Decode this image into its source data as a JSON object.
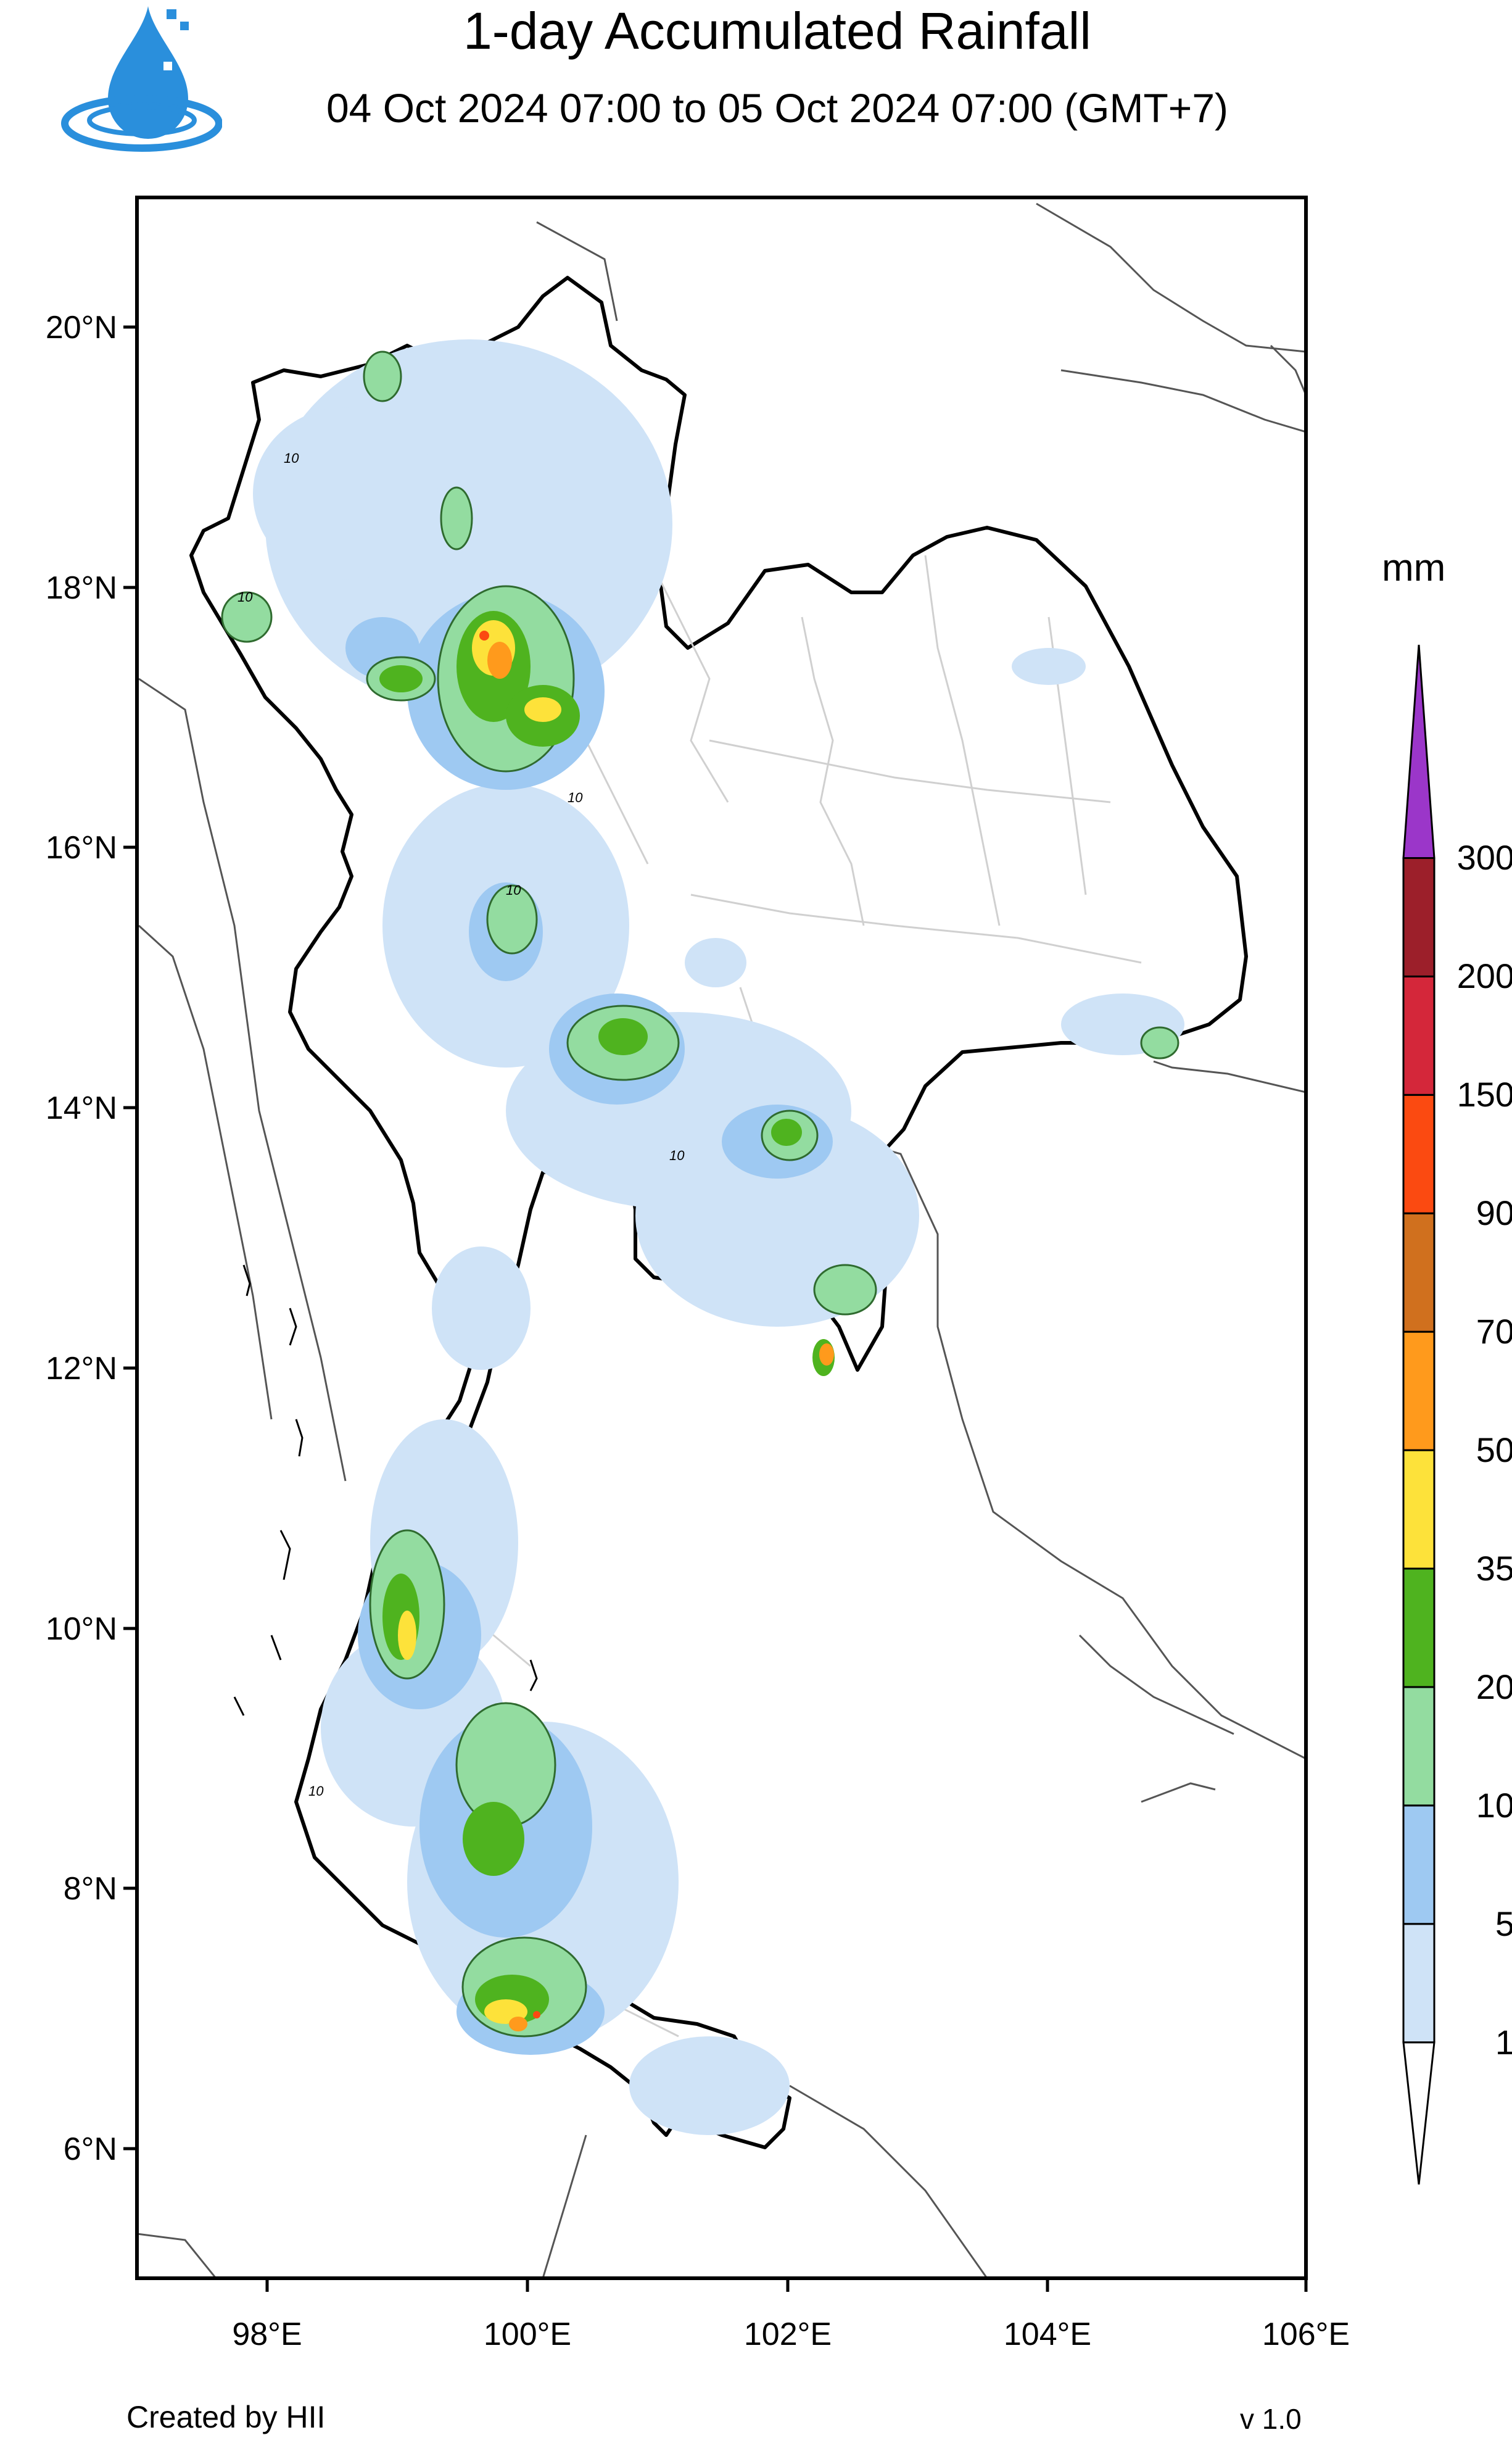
{
  "header": {
    "title": "1-day Accumulated Rainfall",
    "subtitle": "04 Oct 2024 07:00 to 05 Oct 2024 07:00 (GMT+7)"
  },
  "logo": {
    "icon": "water-drop-logo-icon",
    "color": "#1e88d6"
  },
  "map": {
    "lat_labels": [
      "20°N",
      "18°N",
      "16°N",
      "14°N",
      "12°N",
      "10°N",
      "8°N",
      "6°N"
    ],
    "lon_labels": [
      "98°E",
      "100°E",
      "102°E",
      "104°E",
      "106°E"
    ],
    "contour_label": "10"
  },
  "legend": {
    "unit": "mm",
    "levels": [
      "1",
      "5",
      "10",
      "20",
      "35",
      "50",
      "70",
      "90",
      "150",
      "200",
      "300"
    ],
    "colors": [
      "#ffffff",
      "#cfe3f7",
      "#9ec9f2",
      "#93dca0",
      "#4fb31f",
      "#fde23a",
      "#ff9a1c",
      "#d0701e",
      "#fb4a11",
      "#d4273a",
      "#9c1f2a",
      "#9b36c9"
    ]
  },
  "footer": {
    "credit": "Created by HII",
    "version": "v 1.0"
  }
}
